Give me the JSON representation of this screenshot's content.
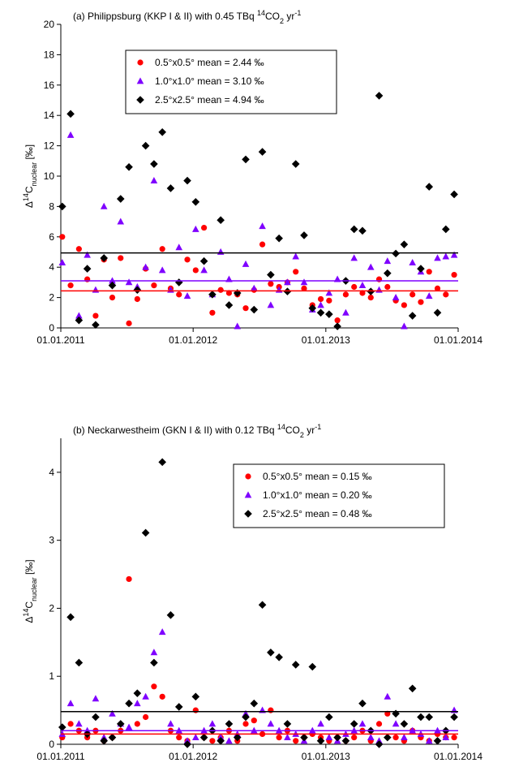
{
  "chart_data": [
    {
      "type": "scatter",
      "title": [
        {
          "text": "(a)   Philippsburg (KKP I & II) with 0.45 TBq ",
          "pos": "base"
        },
        {
          "text": "14",
          "pos": "sup"
        },
        {
          "text": "CO",
          "pos": "base"
        },
        {
          "text": "2",
          "pos": "sub"
        },
        {
          "text": " yr",
          "pos": "base"
        },
        {
          "text": "-1",
          "pos": "sup"
        }
      ],
      "y_label": [
        {
          "text": "Δ",
          "pos": "base"
        },
        {
          "text": "14",
          "pos": "sup"
        },
        {
          "text": "C",
          "pos": "base"
        },
        {
          "text": "nuclear",
          "pos": "sub"
        },
        {
          "text": " [‰]",
          "pos": "base"
        }
      ],
      "x": [
        "05.01.2011",
        "28.01.2011",
        "20.02.2011",
        "15.03.2011",
        "07.04.2011",
        "30.04.2011",
        "23.05.2011",
        "15.06.2011",
        "08.07.2011",
        "31.07.2011",
        "23.08.2011",
        "15.09.2011",
        "08.10.2011",
        "31.10.2011",
        "23.11.2011",
        "16.12.2011",
        "08.01.2012",
        "31.01.2012",
        "23.02.2012",
        "17.03.2012",
        "09.04.2012",
        "02.05.2012",
        "25.05.2012",
        "17.06.2012",
        "10.07.2012",
        "02.08.2012",
        "25.08.2012",
        "17.09.2012",
        "10.10.2012",
        "02.11.2012",
        "25.11.2012",
        "18.12.2012",
        "10.01.2013",
        "02.02.2013",
        "25.02.2013",
        "20.03.2013",
        "12.04.2013",
        "05.05.2013",
        "28.05.2013",
        "20.06.2013",
        "13.07.2013",
        "05.08.2013",
        "28.08.2013",
        "20.09.2013",
        "13.10.2013",
        "05.11.2013",
        "28.11.2013",
        "21.12.2013"
      ],
      "xlim": [
        "01.01.2011",
        "01.01.2014"
      ],
      "xticks": [
        "01.01.2011",
        "01.01.2012",
        "01.01.2013",
        "01.01.2014"
      ],
      "ylim": [
        0,
        20
      ],
      "yticks": [
        0,
        2,
        4,
        6,
        8,
        10,
        12,
        14,
        16,
        18,
        20
      ],
      "legend_position": "upper left",
      "series": [
        {
          "name": "0.5°x0.5° mean = 2.44 ‰",
          "color": "#ff0000",
          "marker": "circle",
          "mean": 2.44,
          "values": [
            6.0,
            2.8,
            5.2,
            3.2,
            0.8,
            4.5,
            2.0,
            4.6,
            0.3,
            1.9,
            3.9,
            2.8,
            5.2,
            2.6,
            2.2,
            4.5,
            3.8,
            6.6,
            1.0,
            2.5,
            2.3,
            2.2,
            1.3,
            2.5,
            5.5,
            2.9,
            2.7,
            3.0,
            3.7,
            2.6,
            1.5,
            1.9,
            1.8,
            0.5,
            2.2,
            2.7,
            2.3,
            2.0,
            3.2,
            2.7,
            1.8,
            1.5,
            2.2,
            1.7,
            3.7,
            2.6,
            2.2,
            3.5
          ]
        },
        {
          "name": "1.0°x1.0° mean = 3.10 ‰",
          "color": "#7f00ff",
          "marker": "triangle",
          "mean": 3.1,
          "values": [
            4.3,
            12.7,
            0.8,
            4.8,
            2.5,
            8.0,
            3.1,
            7.0,
            3.0,
            2.7,
            4.0,
            9.7,
            3.8,
            2.5,
            5.3,
            2.1,
            6.5,
            3.8,
            2.2,
            5.0,
            3.2,
            0.1,
            4.2,
            2.6,
            6.7,
            1.5,
            2.5,
            3.0,
            4.7,
            3.0,
            1.2,
            1.5,
            2.3,
            3.2,
            1.0,
            4.6,
            2.8,
            4.0,
            2.5,
            4.4,
            2.0,
            0.1,
            4.3,
            3.7,
            2.1,
            4.6,
            4.7,
            4.8
          ]
        },
        {
          "name": "2.5°x2.5° mean = 4.94 ‰",
          "color": "#000000",
          "marker": "diamond",
          "mean": 4.94,
          "values": [
            8.0,
            14.1,
            0.5,
            3.9,
            0.2,
            4.6,
            2.8,
            8.5,
            10.6,
            2.5,
            12.0,
            10.8,
            12.9,
            9.2,
            3.0,
            9.7,
            8.3,
            4.4,
            2.2,
            7.1,
            1.5,
            2.3,
            11.1,
            1.2,
            11.6,
            3.5,
            5.9,
            2.4,
            10.8,
            6.1,
            1.3,
            1.0,
            0.9,
            0.1,
            3.1,
            6.5,
            6.4,
            2.4,
            15.3,
            3.6,
            4.9,
            5.5,
            0.8,
            3.9,
            9.3,
            1.0,
            6.5,
            8.8
          ]
        }
      ]
    },
    {
      "type": "scatter",
      "title": [
        {
          "text": "(b)  Neckarwestheim (GKN I & II) with 0.12 TBq ",
          "pos": "base"
        },
        {
          "text": "14",
          "pos": "sup"
        },
        {
          "text": "CO",
          "pos": "base"
        },
        {
          "text": "2",
          "pos": "sub"
        },
        {
          "text": " yr",
          "pos": "base"
        },
        {
          "text": "-1",
          "pos": "sup"
        }
      ],
      "y_label": [
        {
          "text": "Δ",
          "pos": "base"
        },
        {
          "text": "14",
          "pos": "sup"
        },
        {
          "text": "C",
          "pos": "base"
        },
        {
          "text": "nuclear",
          "pos": "sub"
        },
        {
          "text": " [‰]",
          "pos": "base"
        }
      ],
      "x": [
        "05.01.2011",
        "28.01.2011",
        "20.02.2011",
        "15.03.2011",
        "07.04.2011",
        "30.04.2011",
        "23.05.2011",
        "15.06.2011",
        "08.07.2011",
        "31.07.2011",
        "23.08.2011",
        "15.09.2011",
        "08.10.2011",
        "31.10.2011",
        "23.11.2011",
        "16.12.2011",
        "08.01.2012",
        "31.01.2012",
        "23.02.2012",
        "17.03.2012",
        "09.04.2012",
        "02.05.2012",
        "25.05.2012",
        "17.06.2012",
        "10.07.2012",
        "02.08.2012",
        "25.08.2012",
        "17.09.2012",
        "10.10.2012",
        "02.11.2012",
        "25.11.2012",
        "18.12.2012",
        "10.01.2013",
        "02.02.2013",
        "25.02.2013",
        "20.03.2013",
        "12.04.2013",
        "05.05.2013",
        "28.05.2013",
        "20.06.2013",
        "13.07.2013",
        "05.08.2013",
        "28.08.2013",
        "20.09.2013",
        "13.10.2013",
        "05.11.2013",
        "28.11.2013",
        "21.12.2013"
      ],
      "xlim": [
        "01.01.2011",
        "01.01.2014"
      ],
      "xticks": [
        "01.01.2011",
        "01.01.2012",
        "01.01.2013",
        "01.01.2014"
      ],
      "ylim": [
        0,
        4.5
      ],
      "yticks": [
        0,
        1,
        2,
        3,
        4
      ],
      "legend_position": "upper right",
      "series": [
        {
          "name": "0.5°x0.5° mean = 0.15 ‰",
          "color": "#ff0000",
          "marker": "circle",
          "mean": 0.15,
          "values": [
            0.1,
            0.3,
            0.2,
            0.1,
            0.2,
            0.05,
            0.1,
            0.2,
            2.43,
            0.3,
            0.4,
            0.85,
            0.7,
            0.2,
            0.1,
            0.05,
            0.5,
            0.1,
            0.05,
            0.1,
            0.2,
            0.05,
            0.3,
            0.35,
            0.15,
            0.5,
            0.1,
            0.2,
            0.05,
            0.1,
            0.15,
            0.1,
            0.05,
            0.1,
            0.05,
            0.1,
            0.2,
            0.05,
            0.3,
            0.45,
            0.1,
            0.05,
            0.2,
            0.1,
            0.05,
            0.15,
            0.1,
            0.1
          ]
        },
        {
          "name": "1.0°x1.0° mean = 0.20 ‰",
          "color": "#7f00ff",
          "marker": "triangle",
          "mean": 0.2,
          "values": [
            0.15,
            0.6,
            0.3,
            0.2,
            0.67,
            0.1,
            0.45,
            0.3,
            0.25,
            0.6,
            0.7,
            1.35,
            1.65,
            0.3,
            0.2,
            0.05,
            0.1,
            0.2,
            0.3,
            0.1,
            0.05,
            0.15,
            0.45,
            0.2,
            0.5,
            0.3,
            0.2,
            0.1,
            0.15,
            0.05,
            0.2,
            0.3,
            0.1,
            0.05,
            0.15,
            0.2,
            0.3,
            0.1,
            0.05,
            0.7,
            0.3,
            0.1,
            0.2,
            0.15,
            0.05,
            0.2,
            0.1,
            0.5
          ]
        },
        {
          "name": "2.5°x2.5° mean = 0.48 ‰",
          "color": "#000000",
          "marker": "diamond",
          "mean": 0.48,
          "values": [
            0.25,
            1.87,
            1.2,
            0.15,
            0.4,
            0.05,
            0.1,
            0.3,
            0.6,
            0.75,
            3.11,
            1.2,
            4.15,
            1.9,
            0.55,
            0.0,
            0.7,
            0.1,
            0.2,
            0.05,
            0.3,
            0.1,
            0.4,
            0.6,
            2.05,
            1.35,
            1.28,
            0.3,
            1.17,
            0.1,
            1.14,
            0.05,
            0.4,
            0.1,
            0.05,
            0.3,
            0.6,
            0.2,
            0.0,
            0.1,
            0.45,
            0.3,
            0.82,
            0.4,
            0.4,
            0.05,
            0.2,
            0.4
          ]
        }
      ]
    }
  ]
}
